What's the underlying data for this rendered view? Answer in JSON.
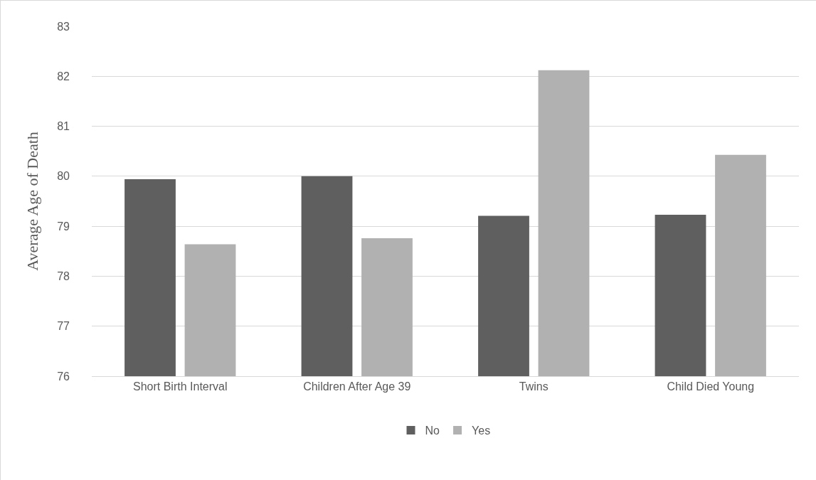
{
  "chart_data": {
    "type": "bar",
    "ylabel": "Average Age of Death",
    "categories": [
      "Short Birth Interval",
      "Children After Age 39",
      "Twins",
      "Child Died Young"
    ],
    "series": [
      {
        "name": "No",
        "color": "#5f5f5f",
        "values": [
          79.94,
          80.0,
          79.21,
          79.23
        ]
      },
      {
        "name": "Yes",
        "color": "#b1b1b1",
        "values": [
          78.64,
          78.76,
          82.12,
          80.43
        ]
      }
    ],
    "ylim": [
      76,
      83
    ],
    "yticks": [
      76,
      77,
      78,
      79,
      80,
      81,
      82,
      83
    ],
    "grid": "y",
    "legend": "bottom"
  }
}
